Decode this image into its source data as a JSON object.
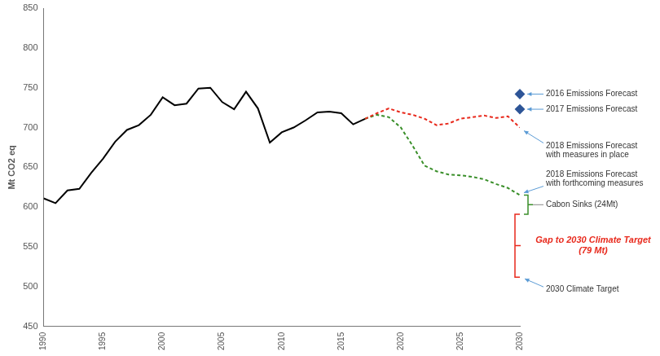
{
  "chart_data": {
    "type": "line",
    "y_label": "Mt CO2 eq",
    "x": [
      1990,
      1991,
      1992,
      1993,
      1994,
      1995,
      1996,
      1997,
      1998,
      1999,
      2000,
      2001,
      2002,
      2003,
      2004,
      2005,
      2006,
      2007,
      2008,
      2009,
      2010,
      2011,
      2012,
      2013,
      2014,
      2015,
      2016,
      2017,
      2018,
      2019,
      2020,
      2021,
      2022,
      2023,
      2024,
      2025,
      2026,
      2027,
      2028,
      2029,
      2030
    ],
    "xlim": [
      1990,
      2030
    ],
    "xticks": [
      1990,
      1995,
      2000,
      2005,
      2010,
      2015,
      2020,
      2025,
      2030
    ],
    "ylim": [
      450,
      850
    ],
    "yticks": [
      450,
      500,
      550,
      600,
      650,
      700,
      750,
      800,
      850
    ],
    "grid": false,
    "series": [
      {
        "color": "#000000",
        "line_style": "solid",
        "values": [
          611,
          605,
          621,
          623,
          643,
          661,
          682,
          697,
          703,
          716,
          738,
          728,
          730,
          749,
          750,
          732,
          723,
          745,
          724,
          681,
          694,
          700,
          709,
          719,
          720,
          718,
          704,
          711,
          null,
          null,
          null,
          null,
          null,
          null,
          null,
          null,
          null,
          null,
          null,
          null,
          null
        ]
      },
      {
        "name": "2018 Emissions Forecast\nwith measures in place",
        "color": "#e8291c",
        "line_style": "dashed",
        "values": [
          null,
          null,
          null,
          null,
          null,
          null,
          null,
          null,
          null,
          null,
          null,
          null,
          null,
          null,
          null,
          null,
          null,
          null,
          null,
          null,
          null,
          null,
          null,
          null,
          null,
          null,
          null,
          711,
          718,
          724,
          719,
          716,
          711,
          703,
          705,
          711,
          713,
          715,
          712,
          714,
          700
        ]
      },
      {
        "name": "2018 Emissions Forecast\nwith forthcoming measures",
        "color": "#3a8f2a",
        "line_style": "dashed",
        "values": [
          null,
          null,
          null,
          null,
          null,
          null,
          null,
          null,
          null,
          null,
          null,
          null,
          null,
          null,
          null,
          null,
          null,
          null,
          null,
          null,
          null,
          null,
          null,
          null,
          null,
          null,
          null,
          711,
          716,
          713,
          700,
          677,
          652,
          645,
          641,
          640,
          638,
          635,
          629,
          624,
          615
        ]
      },
      {
        "name": "2016 Emissions Forecast",
        "type": "scatter",
        "marker": "diamond",
        "color": "#2e5597",
        "values": [
          null,
          null,
          null,
          null,
          null,
          null,
          null,
          null,
          null,
          null,
          null,
          null,
          null,
          null,
          null,
          null,
          null,
          null,
          null,
          null,
          null,
          null,
          null,
          null,
          null,
          null,
          null,
          null,
          null,
          null,
          null,
          null,
          null,
          null,
          null,
          null,
          null,
          null,
          null,
          null,
          742
        ]
      },
      {
        "name": "2017 Emissions Forecast",
        "type": "scatter",
        "marker": "diamond",
        "color": "#2e5597",
        "values": [
          null,
          null,
          null,
          null,
          null,
          null,
          null,
          null,
          null,
          null,
          null,
          null,
          null,
          null,
          null,
          null,
          null,
          null,
          null,
          null,
          null,
          null,
          null,
          null,
          null,
          null,
          null,
          null,
          null,
          null,
          null,
          null,
          null,
          null,
          null,
          null,
          null,
          null,
          null,
          null,
          723
        ]
      }
    ],
    "annotations": [
      {
        "text": "Cabon Sinks (24Mt)",
        "from": 615,
        "to": 591,
        "color": "#3a8f2a"
      },
      {
        "text": "Gap to 2030 Climate Target\n(79 Mt)",
        "from": 591,
        "to": 512,
        "color": "#e8291c"
      },
      {
        "text": "2030 Climate Target",
        "value": 512
      }
    ]
  }
}
